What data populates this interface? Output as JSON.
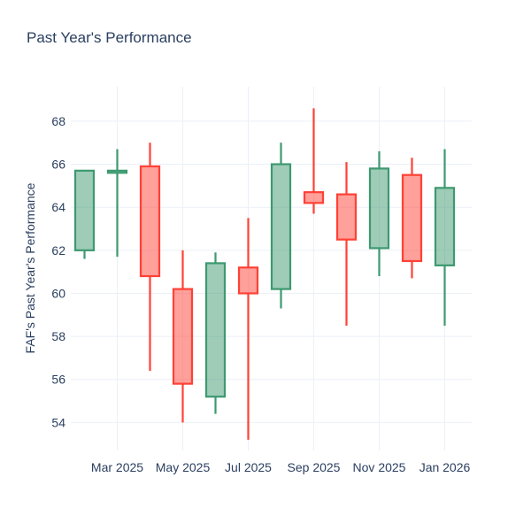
{
  "colors": {
    "increasing_line": "#3D9970",
    "increasing_fill": "rgba(61,153,112,0.5)",
    "decreasing_line": "#FF4136",
    "decreasing_fill": "rgba(255,65,54,0.5)",
    "grid": "#EBF0F8",
    "text": "#2a3f5f",
    "background": "#ffffff"
  },
  "chart_data": {
    "type": "candlestick",
    "title": "Past Year's Performance",
    "xlabel": "",
    "ylabel": "FAF's Past Year's Performance",
    "legend": "none",
    "grid": true,
    "ylim": [
      52.7,
      69.6
    ],
    "y_ticks": [
      54,
      56,
      58,
      60,
      62,
      64,
      66,
      68
    ],
    "x_tick_labels": [
      "Mar 2025",
      "May 2025",
      "Jul 2025",
      "Sep 2025",
      "Nov 2025",
      "Jan 2026"
    ],
    "categories": [
      "Feb 2025",
      "Mar 2025",
      "Apr 2025",
      "May 2025",
      "Jun 2025",
      "Jul 2025",
      "Aug 2025",
      "Sep 2025",
      "Oct 2025",
      "Nov 2025",
      "Dec 2025",
      "Jan 2026"
    ],
    "ohlc": [
      {
        "month": "Feb 2025",
        "open": 62.0,
        "high": 65.7,
        "low": 61.6,
        "close": 65.7
      },
      {
        "month": "Mar 2025",
        "open": 65.6,
        "high": 66.7,
        "low": 61.7,
        "close": 65.7
      },
      {
        "month": "Apr 2025",
        "open": 65.9,
        "high": 67.0,
        "low": 56.4,
        "close": 60.8
      },
      {
        "month": "May 2025",
        "open": 60.2,
        "high": 62.0,
        "low": 54.0,
        "close": 55.8
      },
      {
        "month": "Jun 2025",
        "open": 55.2,
        "high": 61.9,
        "low": 54.4,
        "close": 61.4
      },
      {
        "month": "Jul 2025",
        "open": 61.2,
        "high": 63.5,
        "low": 53.2,
        "close": 60.0
      },
      {
        "month": "Aug 2025",
        "open": 60.2,
        "high": 67.0,
        "low": 59.3,
        "close": 66.0
      },
      {
        "month": "Sep 2025",
        "open": 64.7,
        "high": 68.6,
        "low": 63.7,
        "close": 64.2
      },
      {
        "month": "Oct 2025",
        "open": 64.6,
        "high": 66.1,
        "low": 58.5,
        "close": 62.5
      },
      {
        "month": "Nov 2025",
        "open": 62.1,
        "high": 66.6,
        "low": 60.8,
        "close": 65.8
      },
      {
        "month": "Dec 2025",
        "open": 65.5,
        "high": 66.3,
        "low": 60.7,
        "close": 61.5
      },
      {
        "month": "Jan 2026",
        "open": 61.3,
        "high": 66.7,
        "low": 58.5,
        "close": 64.9
      }
    ]
  }
}
